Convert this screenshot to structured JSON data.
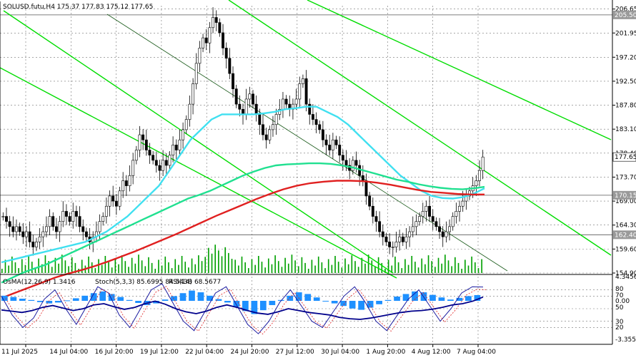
{
  "chart_data": [
    {
      "type": "line",
      "title": "SOLUSD.futu,H4  175.37 177.83 175.12 177.65",
      "symbol": "SOLUSD.futu,H4",
      "ohlc": {
        "open": 175.37,
        "high": 177.83,
        "low": 175.12,
        "close": 177.65
      },
      "price_labels": [
        "206.65",
        "201.95",
        "197.20",
        "192.50",
        "187.80",
        "183.10",
        "178.40",
        "173.70",
        "169.00",
        "164.30",
        "159.60",
        "154.90"
      ],
      "price_range": [
        154.9,
        207.3
      ],
      "time_labels": [
        "11 Jul 2025",
        "14 Jul 04:00",
        "16 Jul 20:00",
        "19 Jul 12:00",
        "22 Jul 04:00",
        "24 Jul 20:00",
        "27 Jul 12:00",
        "30 Jul 04:00",
        "1 Aug 20:00",
        "4 Aug 12:00",
        "7 Aug 04:00"
      ],
      "current_price": {
        "value": 177.65,
        "label": "177.65",
        "color": "#ffffff"
      },
      "horizontal_levels": [
        {
          "value": 205.5,
          "label": "205.50"
        },
        {
          "value": 170.15,
          "label": "170.15"
        },
        {
          "value": 162.4,
          "label": "162.40"
        }
      ],
      "candles_close": [
        166,
        165,
        164,
        163,
        164,
        163,
        162,
        163,
        161,
        160,
        161,
        162,
        163,
        164,
        166,
        164,
        163,
        165,
        167,
        166,
        165,
        167,
        166,
        164,
        163,
        162,
        161,
        162,
        163,
        165,
        166,
        168,
        170,
        169,
        168,
        171,
        173,
        172,
        174,
        177,
        179,
        182,
        181,
        179,
        178,
        177,
        176,
        175,
        177,
        176,
        178,
        180,
        179,
        181,
        183,
        185,
        188,
        192,
        196,
        199,
        201,
        200,
        203,
        205,
        204,
        202,
        199,
        197,
        194,
        191,
        188,
        187,
        186,
        189,
        190,
        188,
        186,
        184,
        182,
        181,
        183,
        184,
        186,
        187,
        189,
        188,
        187,
        188,
        189,
        192,
        193,
        188,
        186,
        185,
        184,
        183,
        181,
        180,
        179,
        181,
        180,
        178,
        177,
        176,
        175,
        177,
        176,
        174,
        173,
        170,
        168,
        166,
        165,
        163,
        162,
        161,
        160,
        160,
        161,
        162,
        161,
        162,
        163,
        164,
        165,
        166,
        167,
        168,
        166,
        165,
        164,
        163,
        162,
        163,
        164,
        166,
        167,
        168,
        169,
        170,
        171,
        172,
        173,
        175,
        177.65
      ],
      "series": [
        {
          "name": "",
          "color": "#40e0f0",
          "values": [
            157,
            157.5,
            158,
            158.5,
            159,
            159.5,
            160,
            160.5,
            161,
            162,
            163,
            164.5,
            166,
            168,
            170,
            172,
            175,
            178,
            181,
            183,
            185,
            186,
            186,
            186,
            186,
            186.2,
            186.5,
            187,
            187.2,
            187.5,
            187.5,
            186.5,
            185.5,
            184,
            182,
            180,
            178,
            176,
            174,
            172.5,
            171,
            170,
            169.6,
            169.5,
            169.8,
            170.5,
            171.5
          ]
        },
        {
          "name": "",
          "color": "#20e090",
          "values": [
            153,
            154,
            155,
            155.8,
            156.5,
            157.5,
            158.5,
            159.5,
            160.5,
            161.5,
            162.5,
            163.5,
            164.5,
            165.5,
            166.5,
            167.5,
            168.5,
            169.5,
            170.2,
            171,
            172,
            173,
            174,
            174.8,
            175.5,
            176,
            176.2,
            176.3,
            176.4,
            176.4,
            176.3,
            176,
            175.6,
            175,
            174.4,
            173.8,
            173.2,
            172.8,
            172.3,
            171.9,
            171.6,
            171.4,
            171.3,
            171.5,
            171.8
          ]
        },
        {
          "name": "",
          "color": "#e02020",
          "values": [
            150,
            151,
            152,
            153,
            154,
            154.8,
            155.5,
            156.3,
            157.2,
            158.2,
            159.2,
            160.3,
            161.4,
            162.5,
            163.7,
            164.9,
            166.1,
            167.2,
            168.3,
            169.4,
            170.4,
            171.3,
            172,
            172.5,
            172.8,
            173,
            173,
            172.9,
            172.6,
            172.2,
            171.7,
            171.2,
            170.8,
            170.6,
            170.4,
            170.3,
            170.3
          ]
        }
      ],
      "channel_lines_color": "#00dd00"
    },
    {
      "type": "line",
      "title": "OsMA(12,26,9) 1.3416  Stoch(5,3,3) 85.6995 84.5438  RSI(14) 68.5677",
      "osma_label": "OsMA(12,26,9) 1.3416",
      "stoch_label": "Stoch(5,3,3) 85.6995 84.5438",
      "rsi_label": "RSI(14) 68.5677",
      "axis_labels": [
        "4.3456",
        "80",
        "70",
        "0.00",
        "50",
        "30",
        "20",
        "-3.3552"
      ],
      "series": [
        {
          "name": "OsMA(12,26,9)",
          "color": "#1e90ff",
          "values": [
            1.2,
            0.9,
            0.5,
            0.2,
            -0.3,
            -0.6,
            -0.4,
            0.1,
            0.6,
            1.2,
            1.8,
            2.2,
            1.6,
            0.9,
            0.2,
            -0.5,
            -1.0,
            -0.6,
            0.3,
            1.1,
            1.8,
            2.4,
            2.0,
            1.2,
            0.4,
            -0.4,
            -1.4,
            -2.4,
            -3.1,
            -2.2,
            -1.0,
            0.2,
            1.2,
            2.0,
            1.6,
            0.8,
            0.0,
            -0.6,
            -1.2,
            -1.8,
            -2.1,
            -1.6,
            -0.8,
            0.2,
            1.0,
            1.6,
            2.2,
            2.0,
            1.4,
            0.8,
            0.3,
            0.7,
            1.1,
            1.3416
          ]
        },
        {
          "name": "Stoch(5,3,3)",
          "color": "#1a1aa0",
          "values": [
            70,
            40,
            20,
            35,
            65,
            80,
            50,
            25,
            55,
            85,
            75,
            40,
            20,
            50,
            80,
            90,
            60,
            30,
            15,
            45,
            75,
            85,
            55,
            25,
            10,
            30,
            60,
            80,
            55,
            30,
            20,
            45,
            70,
            85,
            60,
            30,
            15,
            40,
            65,
            80,
            55,
            30,
            50,
            75,
            85,
            84.5
          ]
        },
        {
          "name": "RSI(14)",
          "color": "#00008b",
          "values": [
            48,
            46,
            44,
            47,
            52,
            55,
            51,
            47,
            50,
            56,
            58,
            53,
            49,
            52,
            58,
            62,
            57,
            50,
            45,
            42,
            46,
            52,
            56,
            52,
            47,
            43,
            41,
            45,
            50,
            47,
            44,
            42,
            40,
            36,
            34,
            33,
            35,
            38,
            41,
            44,
            46,
            47,
            49,
            52,
            56,
            58,
            62,
            68.5677
          ]
        }
      ]
    }
  ]
}
